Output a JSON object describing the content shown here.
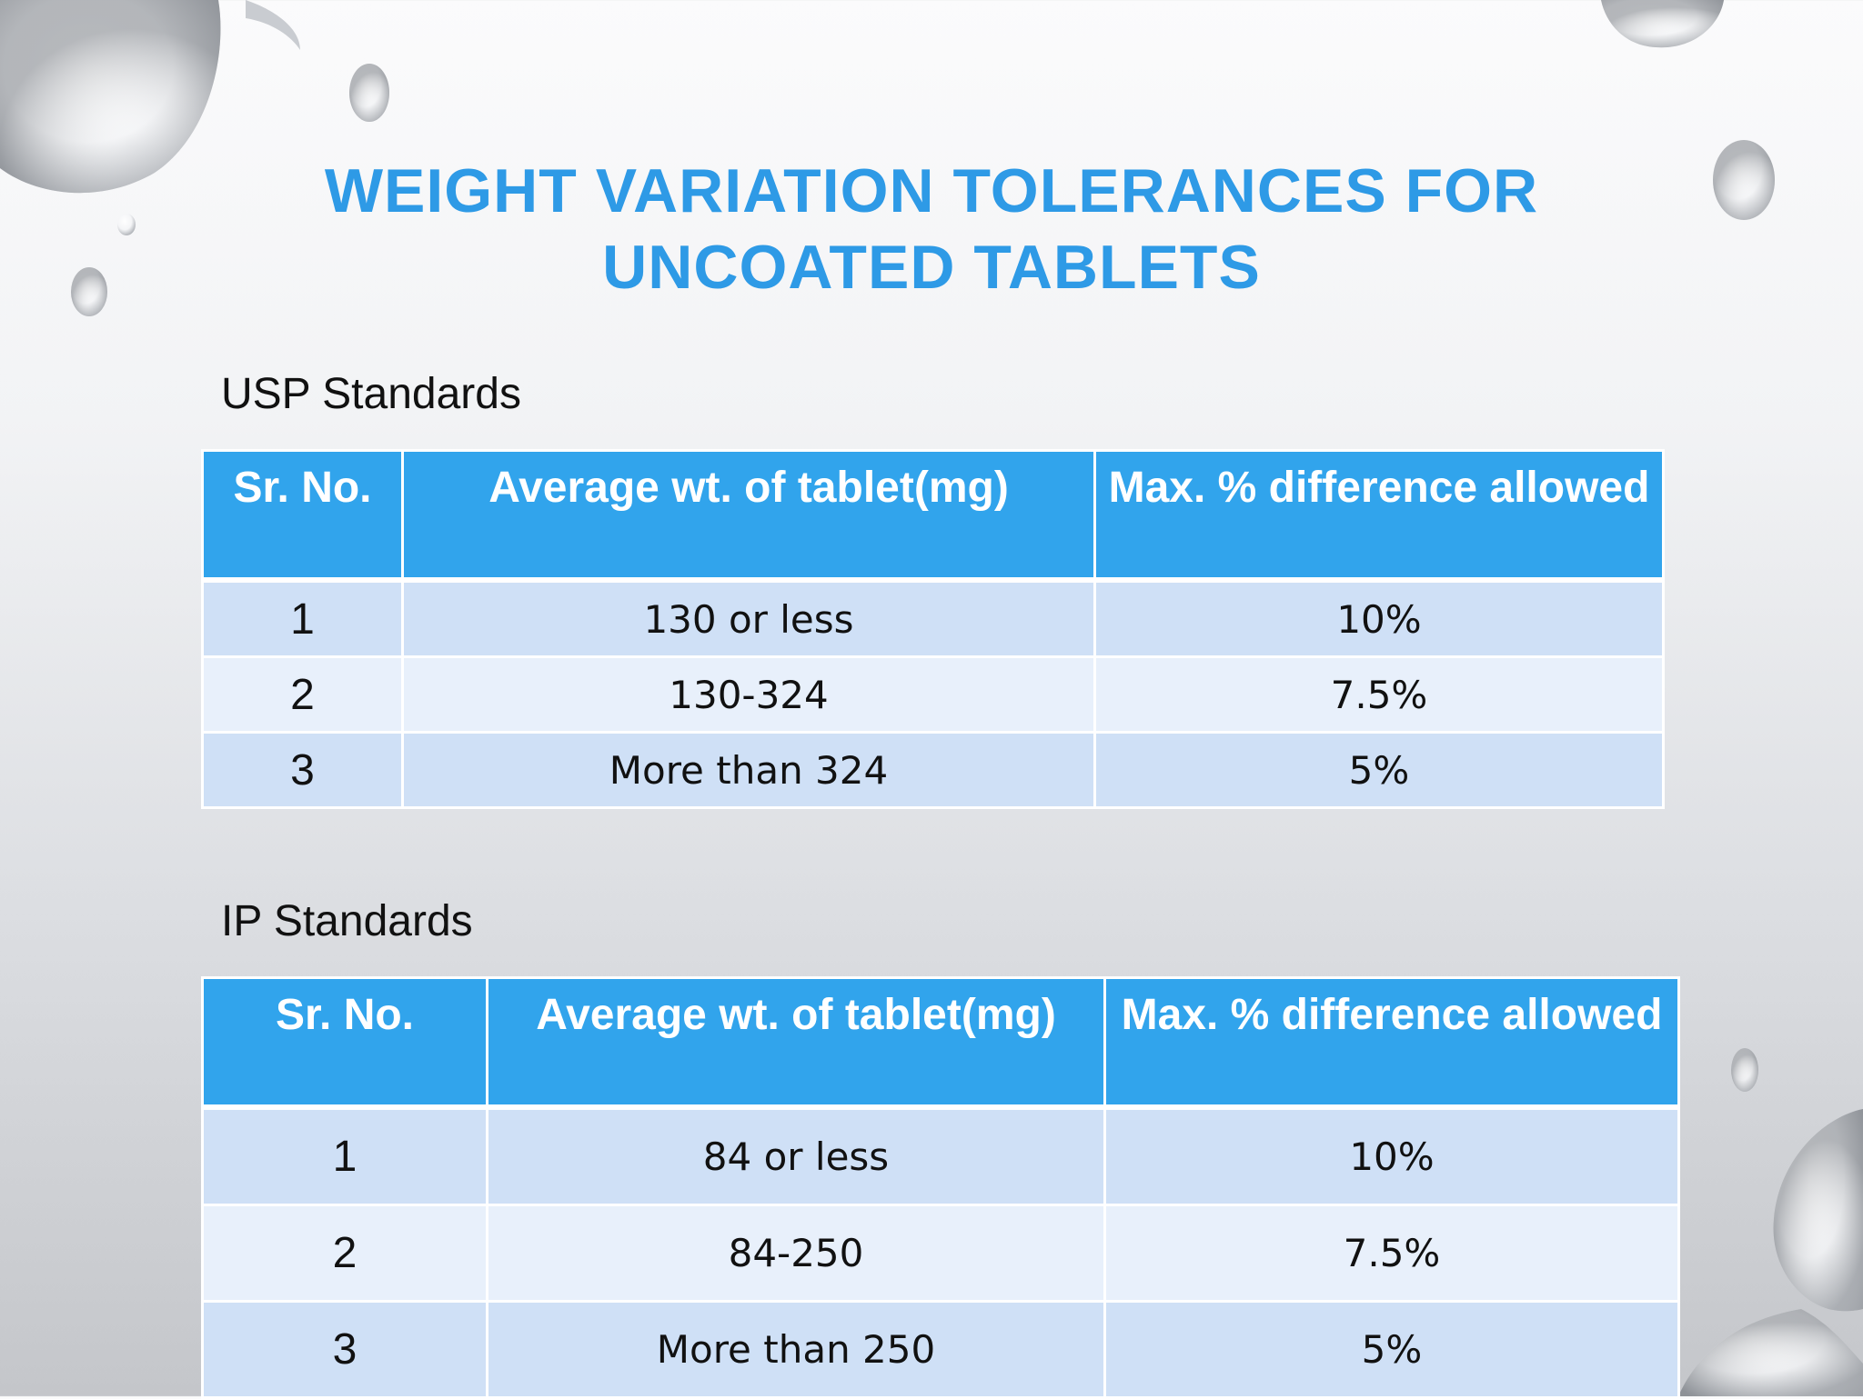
{
  "slide": {
    "title_line1": "WEIGHT VARIATION TOLERANCES FOR",
    "title_line2": "UNCOATED TABLETS"
  },
  "usp": {
    "label": "USP Standards",
    "headers": [
      "Sr. No.",
      "Average wt. of tablet(mg)",
      "Max. % difference allowed"
    ],
    "rows": [
      {
        "sr": "1",
        "weight": "130 or less",
        "diff": "10%"
      },
      {
        "sr": "2",
        "weight": "130-324",
        "diff": "7.5%"
      },
      {
        "sr": "3",
        "weight": "More than 324",
        "diff": "5%"
      }
    ]
  },
  "ip": {
    "label": "IP Standards",
    "headers": [
      "Sr. No.",
      "Average wt. of tablet(mg)",
      "Max. % difference allowed"
    ],
    "rows": [
      {
        "sr": "1",
        "weight": "84 or less",
        "diff": "10%"
      },
      {
        "sr": "2",
        "weight": "84-250",
        "diff": "7.5%"
      },
      {
        "sr": "3",
        "weight": "More than 250",
        "diff": "5%"
      }
    ]
  },
  "colors": {
    "title": "#2e9ae6",
    "header_bg": "#31a4ec",
    "row_odd": "#cfe0f6",
    "row_even": "#e8f0fb"
  }
}
